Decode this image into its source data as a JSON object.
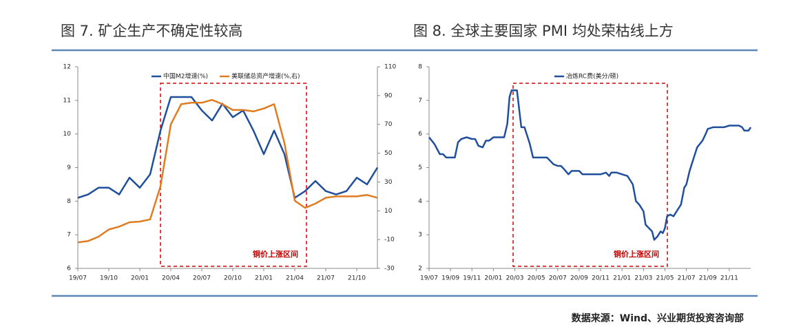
{
  "header": {
    "left_title": "图 7. 矿企生产不确定性较高",
    "right_title": "图 8. 全球主要国家 PMI 均处荣枯线上方"
  },
  "chart_data": [
    {
      "type": "line",
      "categories": [
        "19/07",
        null,
        null,
        "19/10",
        null,
        null,
        "20/01",
        null,
        null,
        "20/04",
        null,
        null,
        "20/07",
        null,
        null,
        "20/10",
        null,
        null,
        "21/01",
        null,
        null,
        "21/04",
        null,
        null,
        "21/07",
        null,
        null,
        "21/10",
        null,
        null
      ],
      "series": [
        {
          "name": "中国M2增速(%)",
          "color": "#1f4e9c",
          "values": [
            8.1,
            8.2,
            8.4,
            8.4,
            8.2,
            8.7,
            8.4,
            8.8,
            10.1,
            11.1,
            11.1,
            11.1,
            10.7,
            10.4,
            10.9,
            10.5,
            10.7,
            10.1,
            9.4,
            10.1,
            9.4,
            8.1,
            8.3,
            8.6,
            8.3,
            8.2,
            8.3,
            8.7,
            8.5,
            9.0
          ]
        },
        {
          "name": "美联储总资产增速(%,右)",
          "color": "#e07b1f",
          "axis": "y2",
          "values": [
            -12,
            -11,
            -8,
            -3,
            -1,
            2,
            2.5,
            4,
            27,
            70,
            84,
            85,
            85,
            87,
            84,
            80,
            80,
            79,
            81,
            84,
            57,
            17,
            12,
            15,
            19,
            20,
            20,
            20,
            21,
            19
          ]
        }
      ],
      "ylim": [
        6,
        12
      ],
      "yticks": [
        6,
        7,
        8,
        9,
        10,
        11,
        12
      ],
      "y2lim": [
        -30,
        110
      ],
      "y2ticks": [
        -30,
        -10,
        10,
        30,
        50,
        70,
        90,
        110
      ],
      "annotation": "铜价上涨区间",
      "legend": "top"
    },
    {
      "type": "line",
      "x": [
        0,
        0.5,
        1,
        1.3,
        1.6,
        2,
        2.4,
        2.7,
        3,
        3.5,
        4,
        4.3,
        4.6,
        5,
        5.3,
        5.6,
        6,
        6.5,
        7,
        7.3,
        7.5,
        7.7,
        8.2,
        8.6,
        8.9,
        9.2,
        9.4,
        9.7,
        10,
        10.5,
        11,
        11.3,
        11.6,
        12,
        12.3,
        12.6,
        13,
        13.3,
        13.6,
        14,
        14.3,
        15,
        15.5,
        16,
        16.5,
        16.8,
        17,
        17.5,
        18,
        18.5,
        18.8,
        19,
        19.3,
        19.6,
        20,
        20.2,
        20.5,
        20.8,
        21,
        21.3,
        21.6,
        21.8,
        22,
        22.2,
        22.5,
        22.8,
        23.2,
        23.5,
        23.8,
        24,
        24.3,
        24.6,
        25,
        25.5,
        25.8,
        26,
        26.5,
        27,
        27.5,
        28,
        28.5,
        28.9,
        29.2,
        29.4,
        29.8,
        30
      ],
      "series": [
        {
          "name": "冶炼RC费(美分/磅)",
          "color": "#1f4e9c",
          "values": [
            5.9,
            5.7,
            5.4,
            5.4,
            5.3,
            5.3,
            5.3,
            5.75,
            5.85,
            5.9,
            5.85,
            5.85,
            5.65,
            5.6,
            5.8,
            5.8,
            5.9,
            5.9,
            5.9,
            6.3,
            7.1,
            7.3,
            7.3,
            6.2,
            6.2,
            5.9,
            5.7,
            5.3,
            5.3,
            5.3,
            5.3,
            5.2,
            5.1,
            5.05,
            5.05,
            4.95,
            4.8,
            4.9,
            4.9,
            4.9,
            4.8,
            4.8,
            4.8,
            4.8,
            4.85,
            4.75,
            4.85,
            4.85,
            4.8,
            4.75,
            4.6,
            4.5,
            4.0,
            3.9,
            3.7,
            3.3,
            3.2,
            3.1,
            2.85,
            2.95,
            3.1,
            3.05,
            3.2,
            3.55,
            3.6,
            3.55,
            3.75,
            3.9,
            4.4,
            4.5,
            4.9,
            5.2,
            5.6,
            5.8,
            6.0,
            6.15,
            6.2,
            6.2,
            6.2,
            6.25,
            6.25,
            6.25,
            6.2,
            6.1,
            6.1,
            6.2
          ]
        }
      ],
      "xlim": [
        0,
        30
      ],
      "xticks": [
        {
          "value": 0,
          "label": "19/07"
        },
        {
          "value": 2,
          "label": "19/09"
        },
        {
          "value": 4,
          "label": "19/11"
        },
        {
          "value": 6,
          "label": "20/01"
        },
        {
          "value": 8,
          "label": "20/03"
        },
        {
          "value": 10,
          "label": "20/05"
        },
        {
          "value": 12,
          "label": "20/07"
        },
        {
          "value": 14,
          "label": "20/09"
        },
        {
          "value": 16,
          "label": "20/11"
        },
        {
          "value": 18,
          "label": "21/01"
        },
        {
          "value": 20,
          "label": "21/03"
        },
        {
          "value": 22,
          "label": "21/05"
        },
        {
          "value": 24,
          "label": "21/07"
        },
        {
          "value": 26,
          "label": "21/09"
        },
        {
          "value": 28,
          "label": "21/11"
        }
      ],
      "ylim": [
        2,
        8
      ],
      "yticks": [
        2,
        3,
        4,
        5,
        6,
        7,
        8
      ],
      "annotation": "铜价上涨区间",
      "legend": "top"
    }
  ],
  "source": "数据来源：Wind、兴业期货投资咨询部"
}
